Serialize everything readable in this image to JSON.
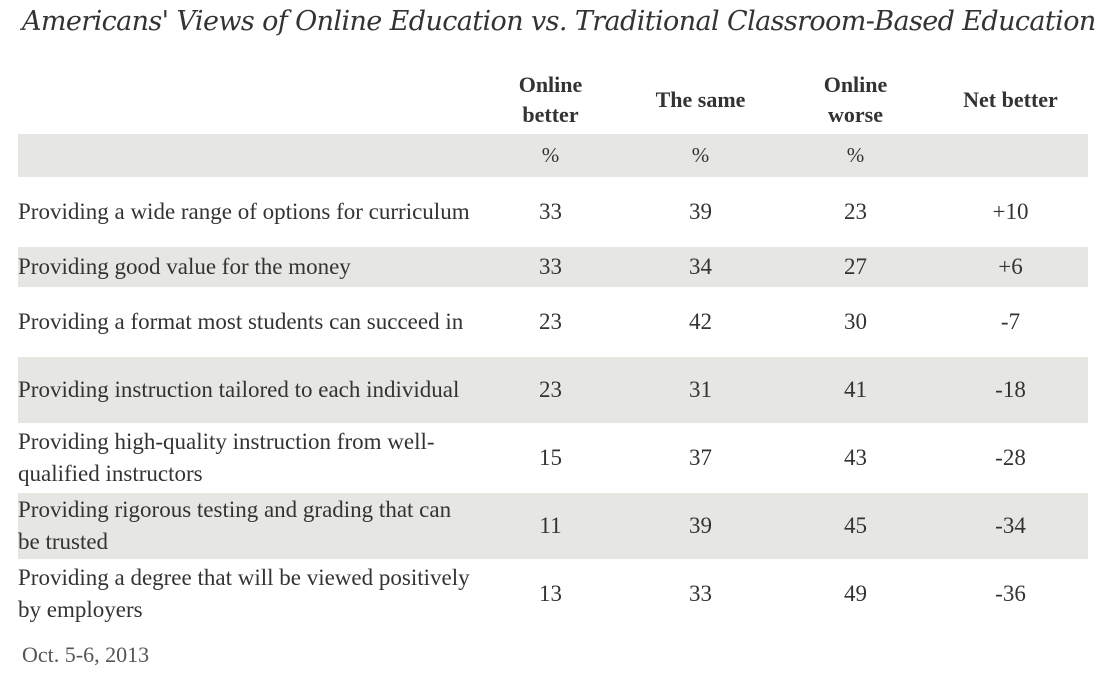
{
  "title": "Americans'  Views of Online Education vs. Traditional Classroom-Based Education",
  "chart_data": {
    "type": "table",
    "columns": [
      {
        "line1": "Online",
        "line2": "better",
        "unit": "%"
      },
      {
        "line1": "The same",
        "line2": "",
        "unit": "%"
      },
      {
        "line1": "Online",
        "line2": "worse",
        "unit": "%"
      },
      {
        "line1": "Net better",
        "line2": "",
        "unit": ""
      }
    ],
    "rows": [
      {
        "label": "Providing a wide range of options for curriculum",
        "values": [
          "33",
          "39",
          "23",
          "+10"
        ]
      },
      {
        "label": "Providing good value for the money",
        "values": [
          "33",
          "34",
          "27",
          "+6"
        ]
      },
      {
        "label": "Providing a format most students can succeed in",
        "values": [
          "23",
          "42",
          "30",
          "-7"
        ]
      },
      {
        "label": "Providing instruction tailored to each individual",
        "values": [
          "23",
          "31",
          "41",
          "-18"
        ]
      },
      {
        "label": "Providing high-quality instruction from well-qualified instructors",
        "values": [
          "15",
          "37",
          "43",
          "-28"
        ]
      },
      {
        "label": "Providing rigorous testing and grading that can be trusted",
        "values": [
          "11",
          "39",
          "45",
          "-34"
        ]
      },
      {
        "label": "Providing a degree that will be viewed positively by employers",
        "values": [
          "13",
          "33",
          "49",
          "-36"
        ]
      }
    ]
  },
  "footer": "Oct. 5-6, 2013",
  "colors": {
    "band": "#e6e6e2",
    "text": "#333333"
  }
}
